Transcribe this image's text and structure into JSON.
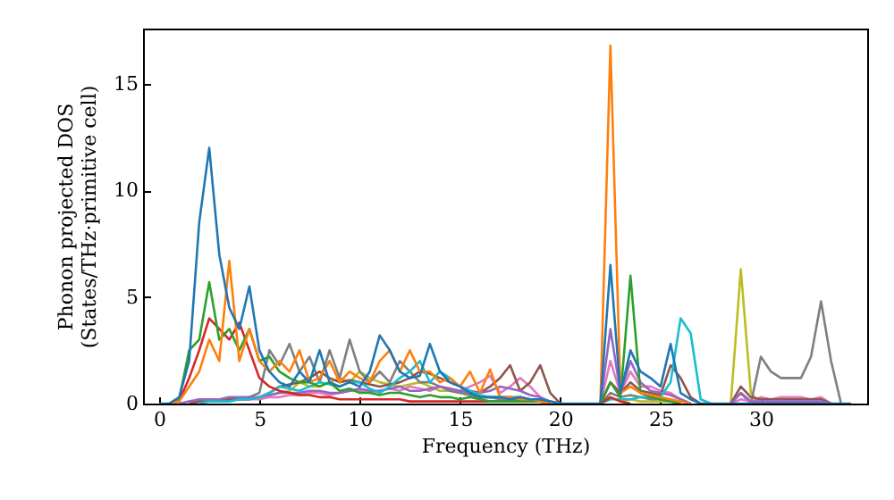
{
  "chart_data": {
    "type": "line",
    "xlabel": "Frequency (THz)",
    "ylabel": "Phonon projected DOS\n(States/THz·primitive cell)",
    "xlim": [
      -0.8,
      35.3
    ],
    "ylim": [
      0,
      17.6
    ],
    "xticks": [
      0,
      5,
      10,
      15,
      20,
      25,
      30
    ],
    "yticks": [
      0,
      5,
      10,
      15
    ],
    "grid": false,
    "marker": "none",
    "line_style": "solid",
    "x": [
      0,
      0.5,
      1,
      1.5,
      2,
      2.5,
      3,
      3.5,
      4,
      4.5,
      5,
      5.5,
      6,
      6.5,
      7,
      7.5,
      8,
      8.5,
      9,
      9.5,
      10,
      10.5,
      11,
      11.5,
      12,
      12.5,
      13,
      13.5,
      14,
      14.5,
      15,
      15.5,
      16,
      16.5,
      17,
      17.5,
      18,
      18.5,
      19,
      19.5,
      20,
      20.5,
      21,
      21.5,
      22,
      22.5,
      23,
      23.5,
      24,
      24.5,
      25,
      25.5,
      26,
      26.5,
      27,
      27.5,
      28,
      28.5,
      29,
      29.5,
      30,
      30.5,
      31,
      31.5,
      32,
      32.5,
      33,
      33.5,
      34,
      34.5
    ],
    "series": [
      {
        "color": "#bcbd22",
        "values": [
          null,
          null,
          null,
          null,
          null,
          null,
          null,
          null,
          null,
          null,
          null,
          0.4,
          0.5,
          0.6,
          1,
          0.8,
          0.8,
          1,
          1.2,
          1,
          1.5,
          1.2,
          1,
          0.9,
          0.8,
          0.9,
          1,
          0.8,
          0.6,
          0.6,
          0.5,
          0.4,
          0.3,
          0.3,
          0.3,
          0.3,
          0.3,
          0.2,
          0.2,
          0,
          null,
          null,
          null,
          null,
          0,
          0.3,
          0.1,
          0.2,
          0.1,
          0.1,
          0.1,
          0.1,
          0,
          null,
          null,
          null,
          null,
          0,
          6.3,
          0.5,
          0,
          null,
          null,
          null,
          null,
          null,
          null,
          null,
          null,
          null
        ]
      },
      {
        "color": "#7f7f7f",
        "values": [
          null,
          null,
          null,
          0,
          0.1,
          0.1,
          0.1,
          0.2,
          0.2,
          0.3,
          0.5,
          2.5,
          1.8,
          2.8,
          1.5,
          2.2,
          1,
          2.5,
          1.2,
          3,
          1.5,
          1,
          1.5,
          1,
          2,
          1.5,
          1,
          1,
          0.8,
          0.6,
          0.5,
          0.4,
          0.3,
          0.3,
          0.2,
          0.2,
          0.2,
          0.1,
          0.1,
          0,
          null,
          null,
          null,
          null,
          0,
          0.5,
          0.3,
          0.4,
          0.3,
          0.2,
          0.2,
          0.1,
          0,
          null,
          null,
          null,
          null,
          0,
          0.5,
          0,
          2.2,
          1.5,
          1.2,
          1.2,
          1.2,
          2.2,
          4.8,
          2,
          0,
          null
        ]
      },
      {
        "color": "#e377c2",
        "values": [
          null,
          null,
          null,
          null,
          null,
          null,
          null,
          null,
          0.2,
          0.2,
          0.2,
          0.3,
          0.3,
          0.4,
          0.4,
          0.5,
          0.5,
          0.4,
          0.5,
          0.6,
          0.6,
          0.5,
          0.6,
          0.7,
          0.6,
          0.8,
          0.7,
          0.6,
          0.8,
          0.7,
          0.6,
          0.8,
          1,
          1.3,
          0.5,
          0.8,
          1.2,
          0.8,
          0.3,
          0,
          null,
          null,
          null,
          null,
          0,
          2,
          0.5,
          1.5,
          0.8,
          0.8,
          0.6,
          0.5,
          0.2,
          0,
          null,
          null,
          null,
          0,
          0.2,
          0.1,
          0.3,
          0.2,
          0.3,
          0.3,
          0.3,
          0.2,
          0.3,
          0,
          null,
          null
        ]
      },
      {
        "color": "#8c564b",
        "values": [
          null,
          null,
          null,
          0,
          0.1,
          0.1,
          0.1,
          0.2,
          0.2,
          0.2,
          0.3,
          0.5,
          0.8,
          0.9,
          1,
          1.2,
          1.5,
          1.2,
          1,
          1.1,
          1,
          0.9,
          0.8,
          0.9,
          1,
          1.2,
          1.5,
          1.4,
          1.2,
          1,
          0.8,
          0.6,
          0.5,
          0.8,
          1.2,
          1.8,
          0.6,
          1,
          1.8,
          0.5,
          0,
          null,
          null,
          null,
          0,
          1,
          0.5,
          1,
          0.6,
          0.5,
          0.4,
          1.8,
          1.2,
          0.3,
          0,
          null,
          null,
          0,
          0.8,
          0.3,
          0.2,
          0.2,
          0.2,
          0.2,
          0.2,
          0.2,
          0.2,
          0,
          null,
          null
        ]
      },
      {
        "color": "#9467bd",
        "values": [
          null,
          null,
          0,
          0.1,
          0.2,
          0.2,
          0.2,
          0.3,
          0.3,
          0.3,
          0.3,
          0.4,
          0.5,
          0.5,
          0.5,
          0.6,
          0.6,
          0.5,
          0.5,
          0.6,
          0.7,
          0.6,
          0.6,
          0.7,
          0.8,
          0.6,
          0.6,
          0.7,
          0.8,
          0.7,
          0.6,
          0.5,
          0.5,
          0.6,
          0.8,
          0.7,
          0.6,
          0.4,
          0.3,
          0.1,
          0,
          null,
          null,
          null,
          0,
          3.5,
          0.5,
          2,
          1,
          0.6,
          0.5,
          0.4,
          0.2,
          0,
          null,
          null,
          null,
          0,
          0.5,
          0.1,
          0.1,
          0.1,
          0.1,
          0.1,
          0.1,
          0.1,
          0.1,
          0,
          null,
          null
        ]
      },
      {
        "color": "#17becf",
        "values": [
          null,
          null,
          null,
          null,
          0,
          0.1,
          0.1,
          0.1,
          0.2,
          0.2,
          0.3,
          0.5,
          0.8,
          0.7,
          0.6,
          0.8,
          1,
          0.9,
          0.8,
          1,
          1,
          0.7,
          0.5,
          0.8,
          1.2,
          1.5,
          2,
          1,
          1.5,
          1.2,
          0.8,
          0.6,
          0.4,
          0.3,
          0.3,
          0.3,
          0.3,
          0.2,
          0.2,
          0,
          null,
          null,
          null,
          null,
          0,
          0.2,
          0.2,
          0.2,
          0.3,
          0.3,
          0.3,
          1,
          4,
          3.3,
          0.2,
          0,
          null,
          null,
          null,
          null,
          null,
          null,
          null,
          null,
          null,
          null,
          null,
          null,
          null,
          null
        ]
      },
      {
        "color": "#d62728",
        "values": [
          null,
          0,
          0.1,
          1.2,
          2.5,
          4,
          3.5,
          3,
          3.8,
          2.5,
          1.2,
          0.8,
          0.6,
          0.5,
          0.4,
          0.4,
          0.3,
          0.3,
          0.2,
          0.2,
          0.2,
          0.2,
          0.2,
          0.2,
          0.2,
          0.1,
          0.1,
          0.1,
          0.1,
          0.1,
          0.1,
          0.1,
          0.1,
          0.1,
          0.1,
          0.1,
          0.1,
          0.1,
          0.1,
          0,
          null,
          null,
          null,
          null,
          0,
          0.3,
          0.1,
          0,
          null,
          null,
          null,
          null,
          null,
          null,
          null,
          null,
          null,
          null,
          null,
          null,
          null,
          null,
          null,
          null,
          null,
          null,
          null,
          null,
          null,
          null
        ]
      },
      {
        "color": "#2ca02c",
        "values": [
          null,
          0,
          0.2,
          2.5,
          3,
          5.7,
          3,
          3.5,
          2.5,
          3.5,
          2,
          2.2,
          1.5,
          1.2,
          1,
          1,
          0.8,
          1,
          0.6,
          0.7,
          0.5,
          0.5,
          0.4,
          0.5,
          0.5,
          0.4,
          0.3,
          0.4,
          0.3,
          0.3,
          0.2,
          0.3,
          0.2,
          0.1,
          0.1,
          0.1,
          0.1,
          0.1,
          0.1,
          0,
          null,
          null,
          null,
          null,
          0,
          1,
          0.3,
          6,
          0.5,
          0.3,
          0.2,
          0.1,
          0,
          null,
          null,
          null,
          null,
          null,
          null,
          null,
          null,
          null,
          null,
          null,
          null,
          null,
          null,
          null,
          null,
          null
        ]
      },
      {
        "color": "#ff7f0e",
        "values": [
          null,
          0,
          0.1,
          0.8,
          1.5,
          3,
          2,
          6.7,
          2,
          3.5,
          2,
          1.5,
          2,
          1.5,
          2.5,
          1,
          1.2,
          2,
          1,
          1.5,
          1.2,
          1,
          2,
          2.5,
          1.5,
          2.5,
          1.5,
          1.5,
          1,
          1.2,
          0.8,
          1.5,
          0.5,
          1.6,
          0.3,
          0.3,
          0.2,
          0.2,
          0.1,
          0,
          null,
          null,
          null,
          null,
          0,
          16.8,
          0.5,
          0.8,
          0.5,
          0.4,
          0.3,
          0.2,
          0.1,
          0,
          null,
          null,
          null,
          null,
          null,
          null,
          null,
          null,
          null,
          null,
          null,
          null,
          null,
          null,
          null,
          null
        ]
      },
      {
        "color": "#1f77b4",
        "values": [
          0,
          0,
          0.3,
          2,
          8.5,
          12,
          7,
          4.5,
          3.5,
          5.5,
          2.5,
          1.5,
          1,
          0.8,
          1.5,
          1,
          2.5,
          1,
          0.8,
          1,
          0.8,
          1.5,
          3.2,
          2.5,
          1.5,
          1.2,
          1.3,
          2.8,
          1.5,
          1,
          0.8,
          0.5,
          0.3,
          0.3,
          0.3,
          0.2,
          0.3,
          0.2,
          0.2,
          0.1,
          0,
          0,
          0,
          0,
          0,
          6.5,
          0.5,
          2.5,
          1.5,
          1.2,
          0.8,
          2.8,
          0.5,
          0.2,
          0,
          0,
          0,
          0,
          0,
          0,
          0,
          0,
          0,
          0,
          0,
          0,
          0,
          0,
          0,
          0
        ]
      }
    ]
  }
}
